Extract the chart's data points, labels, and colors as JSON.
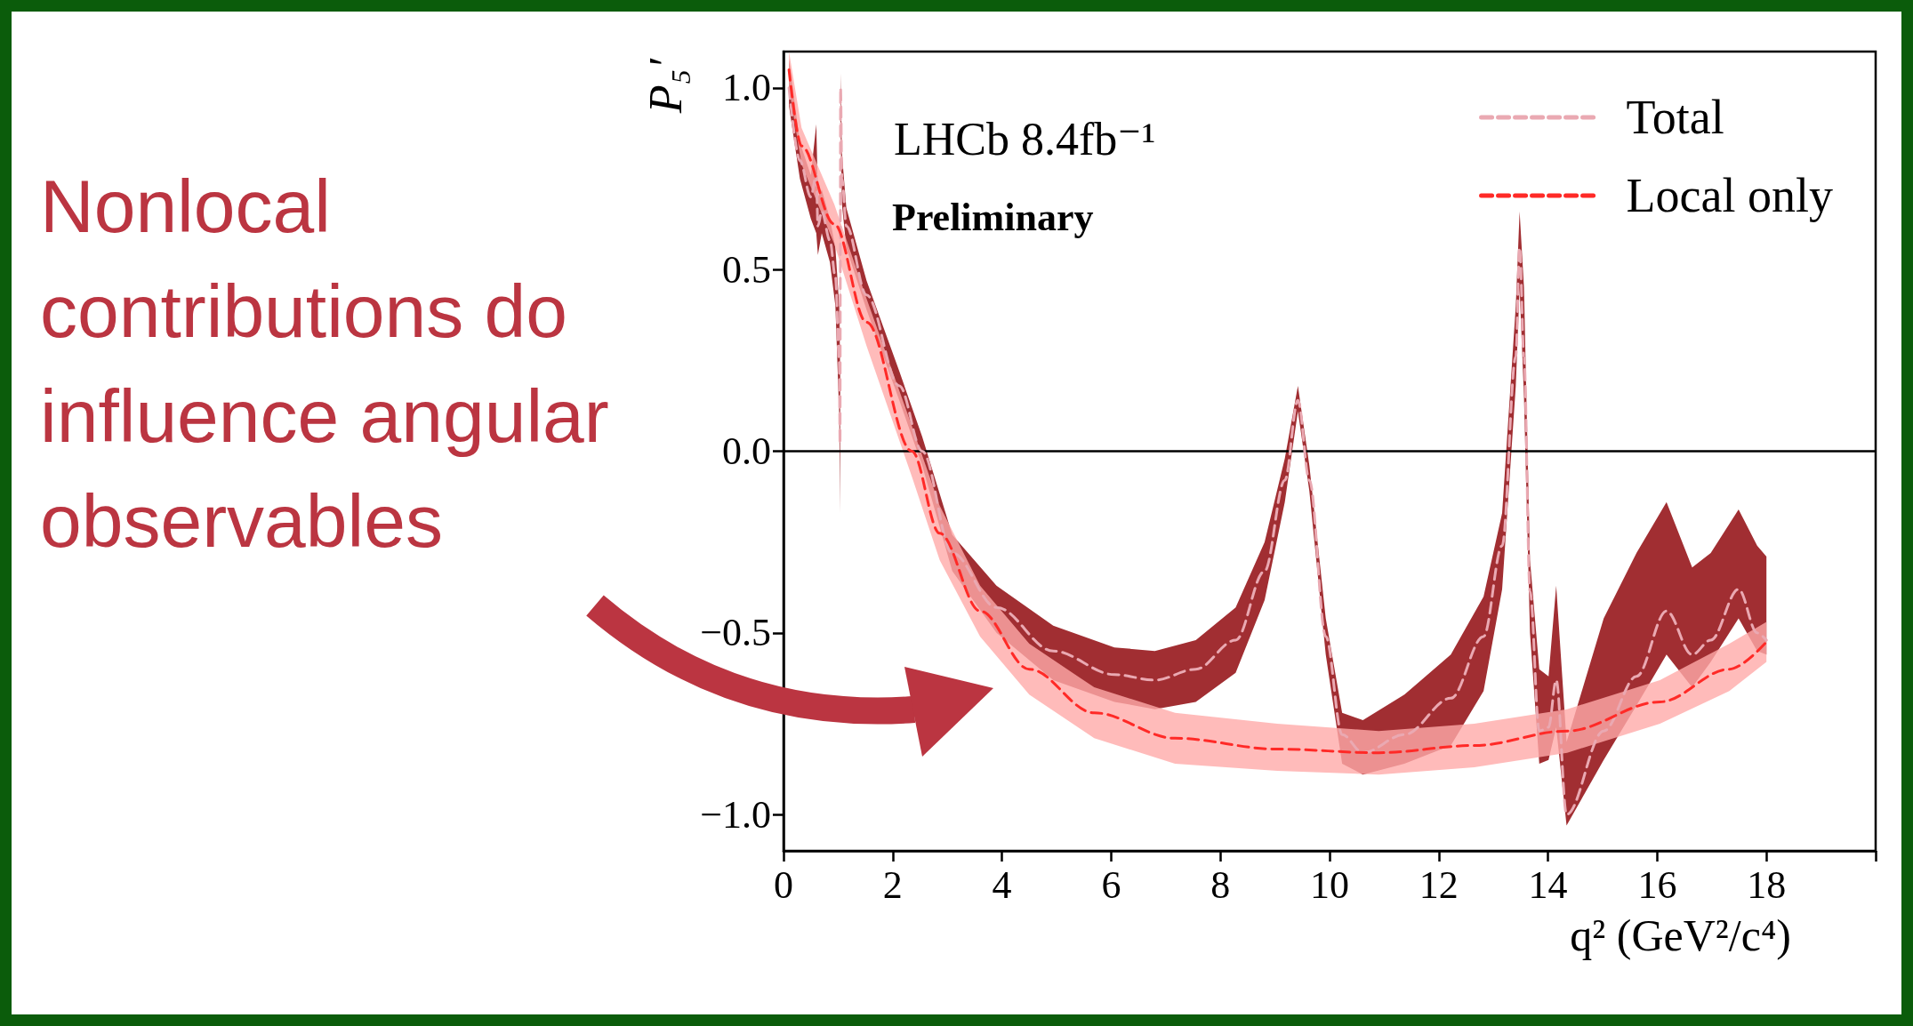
{
  "chart_data": {
    "type": "line",
    "xlabel": "q² (GeV²/c⁴)",
    "ylabel": "P₅′",
    "annotations": [
      "Nonlocal contributions do influence angular observables",
      "LHCb 8.4fb⁻¹",
      "Preliminary"
    ],
    "xlim": [
      0,
      20
    ],
    "xticks": [
      0,
      2,
      4,
      6,
      8,
      10,
      12,
      14,
      16,
      18,
      {
        "value": 20,
        "label": null
      }
    ],
    "ylim": [
      -1.1,
      1.1
    ],
    "yticks": [
      {
        "value": -1,
        "label": "−1.0"
      },
      {
        "value": -0.5,
        "label": "−0.5"
      },
      {
        "value": 0,
        "label": "0.0"
      },
      {
        "value": 0.5,
        "label": "0.5"
      },
      {
        "value": 1,
        "label": "1.0"
      }
    ],
    "grid": false,
    "legend": "top right",
    "marker": "none",
    "line_style": "dashed",
    "ref_lines": [
      {
        "axis": "y",
        "value": 0,
        "color": "#000000"
      }
    ],
    "series": [
      {
        "name": "Total",
        "color": "#eaa9b2",
        "x": [
          0.1,
          0.3,
          0.5,
          0.6,
          0.63,
          0.7,
          0.85,
          0.95,
          1.02,
          1.035,
          1.045,
          1.07,
          1.15,
          1.52,
          2.12,
          2.54,
          3.09,
          3.9,
          4.94,
          6.06,
          6.8,
          7.55,
          8.28,
          8.81,
          9.18,
          9.42,
          9.63,
          9.93,
          10.23,
          10.61,
          11.37,
          12.22,
          12.82,
          13.16,
          13.41,
          13.48,
          13.56,
          13.67,
          13.84,
          14.01,
          14.15,
          14.34,
          15.02,
          15.62,
          16.17,
          16.64,
          16.98,
          17.49,
          17.83,
          18.0
        ],
        "values": [
          1.0,
          0.8,
          0.7,
          0.76,
          0.62,
          0.66,
          0.58,
          0.48,
          0.25,
          0.02,
          1.0,
          0.75,
          0.62,
          0.43,
          0.18,
          0.0,
          -0.28,
          -0.43,
          -0.55,
          -0.615,
          -0.63,
          -0.6,
          -0.52,
          -0.33,
          -0.08,
          0.14,
          -0.08,
          -0.51,
          -0.78,
          -0.83,
          -0.78,
          -0.68,
          -0.51,
          -0.26,
          0.26,
          0.56,
          0.26,
          -0.385,
          -0.77,
          -0.76,
          -0.63,
          -1.0,
          -0.77,
          -0.62,
          -0.44,
          -0.56,
          -0.52,
          -0.38,
          -0.5,
          -0.52
        ],
        "lower": [
          0.95,
          0.75,
          0.64,
          0.6,
          0.54,
          0.6,
          0.52,
          0.4,
          0.1,
          -0.17,
          0.9,
          0.68,
          0.56,
          0.39,
          0.14,
          -0.04,
          -0.33,
          -0.5,
          -0.63,
          -0.69,
          -0.71,
          -0.69,
          -0.61,
          -0.41,
          -0.14,
          0.11,
          -0.11,
          -0.56,
          -0.86,
          -0.89,
          -0.86,
          -0.81,
          -0.66,
          -0.38,
          0.18,
          0.45,
          0.15,
          -0.5,
          -0.86,
          -0.85,
          -0.76,
          -1.03,
          -0.85,
          -0.7,
          -0.56,
          -0.65,
          -0.58,
          -0.46,
          -0.55,
          -0.56
        ],
        "upper": [
          1.08,
          0.85,
          0.76,
          0.9,
          0.7,
          0.72,
          0.64,
          0.56,
          0.4,
          0.2,
          1.04,
          0.82,
          0.67,
          0.47,
          0.22,
          0.04,
          -0.23,
          -0.37,
          -0.48,
          -0.54,
          -0.55,
          -0.52,
          -0.43,
          -0.25,
          -0.02,
          0.18,
          -0.04,
          -0.46,
          -0.72,
          -0.74,
          -0.67,
          -0.56,
          -0.4,
          -0.17,
          0.4,
          0.66,
          0.45,
          -0.3,
          -0.6,
          -0.62,
          -0.37,
          -0.8,
          -0.46,
          -0.28,
          -0.14,
          -0.32,
          -0.28,
          -0.16,
          -0.26,
          -0.29
        ]
      },
      {
        "name": "Local only",
        "color": "#ff2a27",
        "x": [
          0.1,
          0.33,
          0.93,
          1.52,
          2.35,
          2.86,
          3.6,
          4.5,
          5.69,
          7.17,
          9.04,
          10.9,
          12.65,
          14.35,
          16.05,
          17.32,
          18.0
        ],
        "values": [
          1.05,
          0.84,
          0.625,
          0.355,
          0.0,
          -0.226,
          -0.44,
          -0.6,
          -0.72,
          -0.79,
          -0.82,
          -0.83,
          -0.81,
          -0.77,
          -0.69,
          -0.6,
          -0.525
        ],
        "lower": [
          1.0,
          0.79,
          0.57,
          0.29,
          -0.07,
          -0.3,
          -0.51,
          -0.67,
          -0.79,
          -0.86,
          -0.88,
          -0.89,
          -0.87,
          -0.83,
          -0.75,
          -0.66,
          -0.58
        ],
        "upper": [
          1.1,
          0.89,
          0.68,
          0.42,
          0.07,
          -0.15,
          -0.37,
          -0.53,
          -0.65,
          -0.72,
          -0.75,
          -0.77,
          -0.75,
          -0.71,
          -0.63,
          -0.53,
          -0.47
        ]
      }
    ]
  }
}
